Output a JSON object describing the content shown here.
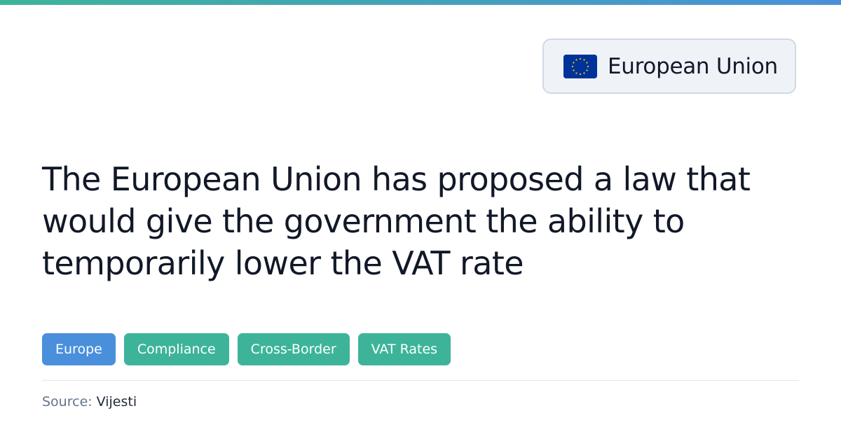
{
  "colors": {
    "accent_gradient_start": "#3db49a",
    "accent_gradient_end": "#4a90d9",
    "tag_blue": "#4a8fdb",
    "tag_teal": "#3db49a",
    "flag_blue": "#003399",
    "flag_star": "#ffcc00"
  },
  "region": {
    "icon": "eu-flag-icon",
    "label": "European Union"
  },
  "headline": "The European Union has proposed a law that would give the government the ability to temporarily lower the VAT rate",
  "tags": [
    {
      "label": "Europe",
      "color": "blue"
    },
    {
      "label": "Compliance",
      "color": "teal"
    },
    {
      "label": "Cross-Border",
      "color": "teal"
    },
    {
      "label": "VAT Rates",
      "color": "teal"
    }
  ],
  "source": {
    "label": "Source:",
    "value": "Vijesti"
  }
}
